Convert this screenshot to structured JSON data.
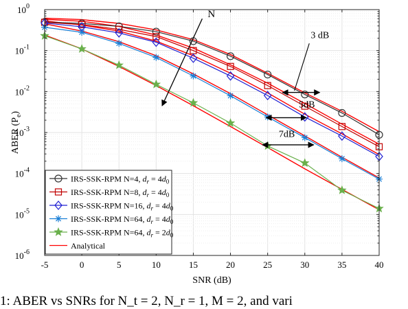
{
  "chart_data": {
    "type": "line",
    "xlabel": "SNR (dB)",
    "ylabel_main": "ABER (P",
    "ylabel_sub": "e",
    "ylabel_close": ")",
    "x": [
      -5,
      0,
      5,
      10,
      15,
      20,
      25,
      30,
      35,
      40
    ],
    "xlim": [
      -5,
      40
    ],
    "xticks": [
      "-5",
      "0",
      "5",
      "10",
      "15",
      "20",
      "25",
      "30",
      "35",
      "40"
    ],
    "ylim": [
      1e-06,
      1
    ],
    "yscale": "log",
    "yticks": [
      {
        "base": "10",
        "exp": "-6"
      },
      {
        "base": "10",
        "exp": "-5"
      },
      {
        "base": "10",
        "exp": "-4"
      },
      {
        "base": "10",
        "exp": "-3"
      },
      {
        "base": "10",
        "exp": "-2"
      },
      {
        "base": "10",
        "exp": "-1"
      },
      {
        "base": "10",
        "exp": "0"
      }
    ],
    "grid": true,
    "legend_position": "bottom-left",
    "series": [
      {
        "name": "IRS-SSK-RPM N=4, d_r = 4d_0",
        "legend_prefix": "IRS-SSK-RPM N=4, ",
        "legend_var": "d",
        "legend_var_sub": "r",
        "legend_mid": " = 4",
        "legend_tail": "d",
        "legend_tail_sub": "0",
        "color": "#333333",
        "marker": "circle",
        "values": [
          0.5,
          0.46,
          0.39,
          0.29,
          0.17,
          0.073,
          0.026,
          0.0085,
          0.003,
          0.00088
        ]
      },
      {
        "name": "IRS-SSK-RPM N=8, d_r = 4d_0",
        "legend_prefix": "IRS-SSK-RPM N=8, ",
        "legend_var": "d",
        "legend_var_sub": "r",
        "legend_mid": " = 4",
        "legend_tail": "d",
        "legend_tail_sub": "0",
        "color": "#c00000",
        "marker": "square",
        "values": [
          0.49,
          0.43,
          0.33,
          0.22,
          0.1,
          0.041,
          0.014,
          0.0044,
          0.0014,
          0.00045
        ]
      },
      {
        "name": "IRS-SSK-RPM N=16, d_r = 4d_0",
        "legend_prefix": "IRS-SSK-RPM N=16, ",
        "legend_var": "d",
        "legend_var_sub": "r",
        "legend_mid": " = 4",
        "legend_tail": "d",
        "legend_tail_sub": "0",
        "color": "#1f1fd2",
        "marker": "diamond",
        "values": [
          0.47,
          0.38,
          0.27,
          0.16,
          0.065,
          0.024,
          0.008,
          0.0024,
          0.00082,
          0.00026
        ]
      },
      {
        "name": "IRS-SSK-RPM N=64, d_r = 4d_0",
        "legend_prefix": "IRS-SSK-RPM N=64, ",
        "legend_var": "d",
        "legend_var_sub": "r",
        "legend_mid": " = 4",
        "legend_tail": "d",
        "legend_tail_sub": "0",
        "color": "#1a7fd6",
        "marker": "asterisk",
        "values": [
          0.37,
          0.28,
          0.15,
          0.068,
          0.024,
          0.0079,
          0.0024,
          0.00075,
          0.00023,
          7.3e-05
        ]
      },
      {
        "name": "IRS-SSK-RPM N=64, d_r = 2d_0",
        "legend_prefix": "IRS-SSK-RPM N=64, ",
        "legend_var": "d",
        "legend_var_sub": "r",
        "legend_mid": " = 2",
        "legend_tail": "d",
        "legend_tail_sub": "0",
        "color": "#6ab04c",
        "marker": "star",
        "values": [
          0.23,
          0.11,
          0.044,
          0.015,
          0.0053,
          0.0017,
          0.00047,
          0.00018,
          3.9e-05,
          1.4e-05
        ]
      },
      {
        "name": "Analytical",
        "legend_prefix": "Analytical",
        "color": "#ff0000",
        "marker": "none",
        "lines": [
          [
            0.62,
            0.57,
            0.46,
            0.32,
            0.185,
            0.08,
            0.028,
            0.0093,
            0.0033,
            0.00105
          ],
          [
            0.58,
            0.52,
            0.39,
            0.24,
            0.115,
            0.045,
            0.016,
            0.0051,
            0.0016,
            0.00052
          ],
          [
            0.53,
            0.42,
            0.3,
            0.17,
            0.075,
            0.028,
            0.0093,
            0.0028,
            0.00093,
            0.00029
          ],
          [
            0.45,
            0.3,
            0.165,
            0.075,
            0.027,
            0.0089,
            0.0027,
            0.00083,
            0.00025,
            7.8e-05
          ],
          [
            0.24,
            0.11,
            0.041,
            0.014,
            0.0045,
            0.0014,
            0.00043,
            0.00013,
            4.1e-05,
            1.3e-05
          ]
        ]
      }
    ],
    "annotations": [
      {
        "label": "N",
        "arrow_from": [
          16.2,
          0.6
        ],
        "arrow_to": [
          10.8,
          0.0045
        ]
      },
      {
        "label": "3 dB",
        "text_at": [
          30.8,
          0.2
        ],
        "arrow_from": [
          27,
          0.0095
        ],
        "arrow_to": [
          32,
          0.0095
        ]
      },
      {
        "label": "5dB",
        "text_at": [
          29.2,
          0.0041
        ],
        "arrow_from": [
          24.8,
          0.0023
        ],
        "arrow_to": [
          30.2,
          0.0023
        ]
      },
      {
        "label": "7dB",
        "text_at": [
          26.5,
          0.00078
        ],
        "arrow_from": [
          24.3,
          0.0005
        ],
        "arrow_to": [
          31.2,
          0.0005
        ]
      }
    ]
  },
  "caption": "1: ABER vs SNRs for N_t = 2, N_r = 1, M = 2, and vari"
}
